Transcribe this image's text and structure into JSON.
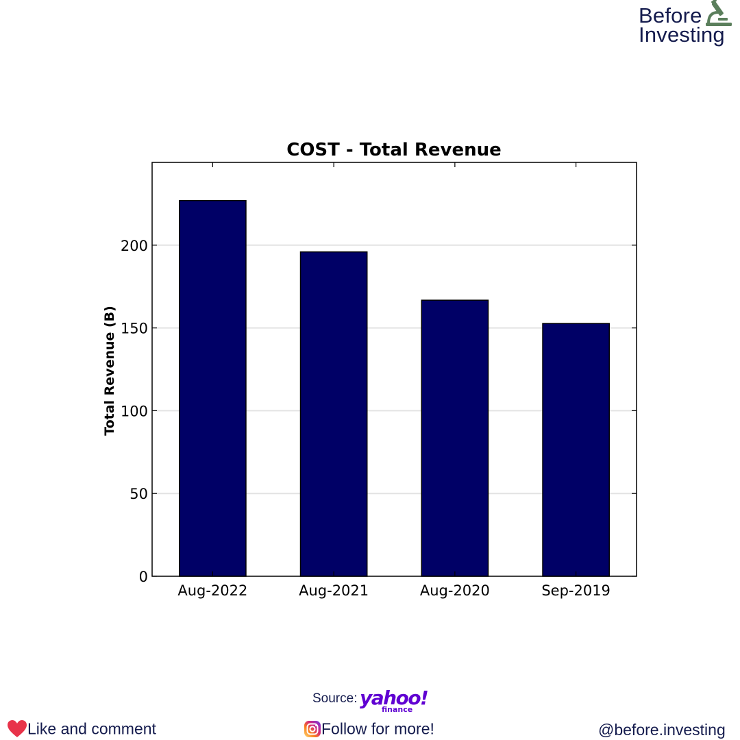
{
  "brand": {
    "line1": "Before",
    "line2": "Investing",
    "icon": "microscope-icon"
  },
  "chart_data": {
    "type": "bar",
    "title": "COST - Total Revenue",
    "ylabel": "Total Revenue (B)",
    "xlabel": "",
    "categories": [
      "Aug-2022",
      "Aug-2021",
      "Aug-2020",
      "Sep-2019"
    ],
    "values": [
      226.95,
      195.93,
      166.76,
      152.7
    ],
    "ylim": [
      0,
      250
    ],
    "yticks": [
      0,
      50,
      100,
      150,
      200
    ],
    "grid": "horizontal",
    "bar_color": "#000066",
    "legend": "none"
  },
  "footer": {
    "source_label": "Source:",
    "source_logo_word": "yahoo!",
    "source_logo_sub": "finance",
    "like_text": "Like and comment",
    "follow_text": "Follow for more!",
    "handle": "@before.investing",
    "heart_icon": "heart-icon",
    "instagram_icon": "instagram-icon"
  }
}
